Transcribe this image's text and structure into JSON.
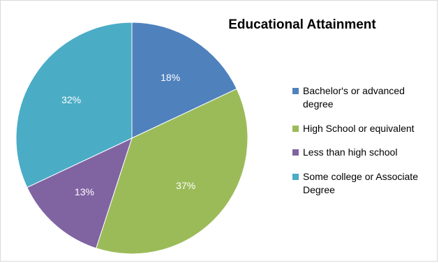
{
  "chart_data": {
    "type": "pie",
    "title": "Educational Attainment",
    "categories": [
      "Bachelor's or advanced degree",
      "High School or equivalent",
      "Less than high school",
      "Some college or Associate Degree"
    ],
    "values": [
      18,
      37,
      13,
      32
    ],
    "labels": [
      "18%",
      "37%",
      "13%",
      "32%"
    ],
    "colors": [
      "#4F81BD",
      "#9BBB59",
      "#8064A2",
      "#4BACC6"
    ],
    "start_angle": "12 o'clock",
    "direction": "clockwise",
    "legend_position": "right"
  }
}
